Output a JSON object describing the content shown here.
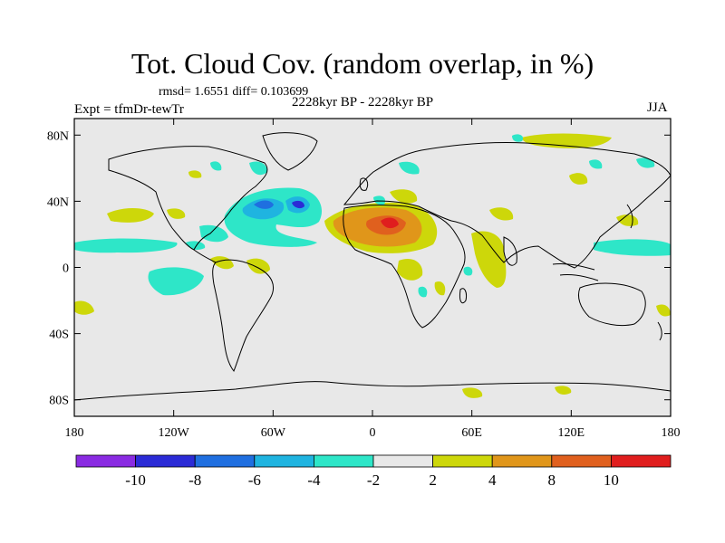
{
  "title": "Tot. Cloud Cov. (random overlap, in %)",
  "stats": "rmsd= 1.6551 diff= 0.103699",
  "experiment": "Expt = tfmDr-tewTr",
  "period": "2228kyr BP - 2228kyr BP",
  "season": "JJA",
  "axes": {
    "x_ticks": [
      "180",
      "120W",
      "60W",
      "0",
      "60E",
      "120E",
      "180"
    ],
    "y_ticks": [
      "80N",
      "40N",
      "0",
      "40S",
      "80S"
    ]
  },
  "colorbar": {
    "labels": [
      "-10",
      "-8",
      "-6",
      "-4",
      "-2",
      "2",
      "4",
      "8",
      "10"
    ],
    "colors": [
      "#8a2be2",
      "#2b2bd6",
      "#1f6fe0",
      "#1fb4e0",
      "#2ee6c8",
      "#e8e8e8",
      "#cdd70a",
      "#e0961a",
      "#e0601e",
      "#e01e1e"
    ]
  },
  "colors": {
    "land_outline": "#000000",
    "background": "#e8e8e8"
  }
}
